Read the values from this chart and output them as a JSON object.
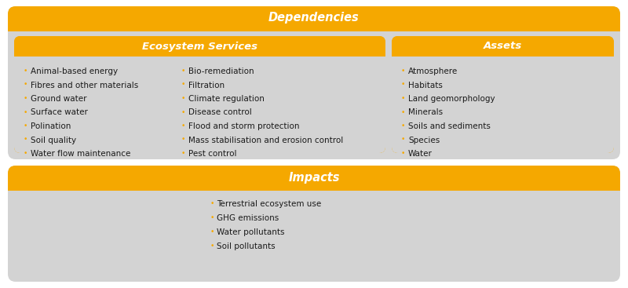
{
  "title_dependencies": "Dependencies",
  "title_impacts": "Impacts",
  "title_ecosystem": "Ecosystem Services",
  "title_assets": "Assets",
  "gold_color": "#F5A800",
  "light_gray_bg": "#D3D3D3",
  "white": "#FFFFFF",
  "text_color_dark": "#1A1A1A",
  "text_color_white": "#FFFFFF",
  "ecosystem_col1": [
    "Animal-based energy",
    "Fibres and other materials",
    "Ground water",
    "Surface water",
    "Polination",
    "Soil quality",
    "Water flow maintenance"
  ],
  "ecosystem_col2": [
    "Bio-remediation",
    "Filtration",
    "Climate regulation",
    "Disease control",
    "Flood and storm protection",
    "Mass stabilisation and erosion control",
    "Pest control"
  ],
  "assets_col": [
    "Atmosphere",
    "Habitats",
    "Land geomorphology",
    "Minerals",
    "Soils and sediments",
    "Species",
    "Water"
  ],
  "impacts_col": [
    "Terrestrial ecosystem use",
    "GHG emissions",
    "Water pollutants",
    "Soil pollutants"
  ],
  "bullet": "•"
}
